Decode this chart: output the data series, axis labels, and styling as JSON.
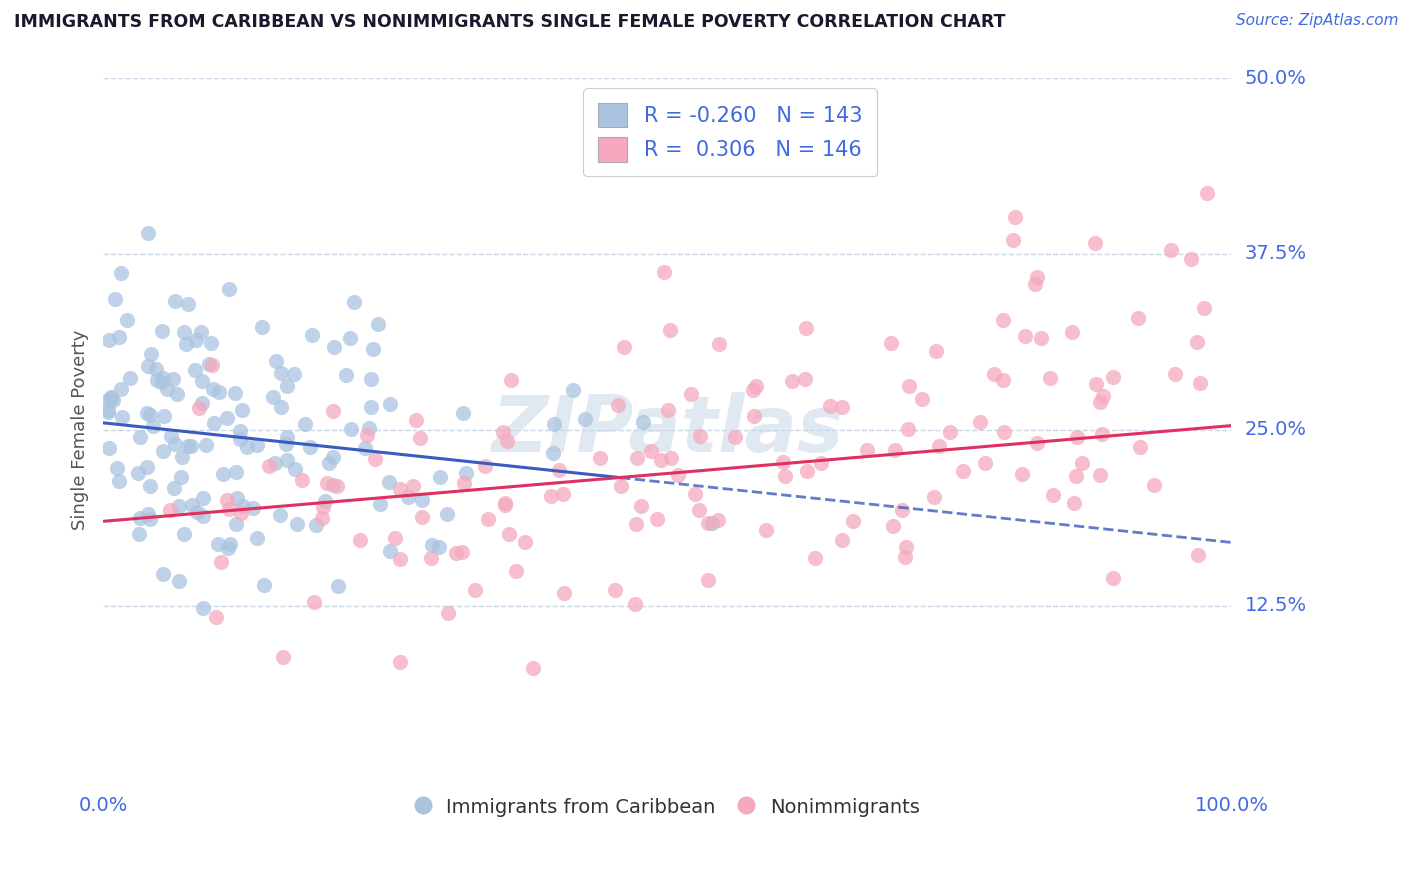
{
  "title": "IMMIGRANTS FROM CARIBBEAN VS NONIMMIGRANTS SINGLE FEMALE POVERTY CORRELATION CHART",
  "source": "Source: ZipAtlas.com",
  "ylabel": "Single Female Poverty",
  "xlim": [
    0,
    1
  ],
  "ylim": [
    0,
    0.5
  ],
  "yticks": [
    0.125,
    0.25,
    0.375,
    0.5
  ],
  "ytick_labels": [
    "12.5%",
    "25.0%",
    "37.5%",
    "50.0%"
  ],
  "xtick_labels": [
    "0.0%",
    "100.0%"
  ],
  "xticks": [
    0,
    1
  ],
  "legend_labels": [
    "Immigrants from Caribbean",
    "Nonimmigrants"
  ],
  "blue_color": "#aac4e0",
  "pink_color": "#f5a8be",
  "blue_line_color": "#3a5bbf",
  "pink_line_color": "#e03060",
  "R_blue": -0.26,
  "N_blue": 143,
  "R_pink": 0.306,
  "N_pink": 146,
  "axis_label_color": "#4169e1",
  "background_color": "#ffffff",
  "grid_color": "#c8d8e8",
  "blue_intercept": 0.255,
  "blue_slope": -0.085,
  "pink_intercept": 0.185,
  "pink_slope": 0.068
}
